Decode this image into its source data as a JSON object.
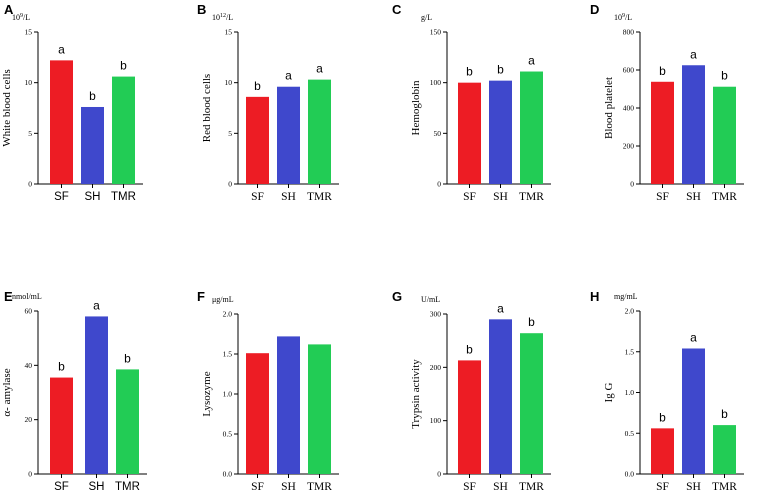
{
  "colors": {
    "SF": "#ed1c24",
    "SH": "#3f48cc",
    "TMR": "#22cc55"
  },
  "chart_data": [
    {
      "type": "bar",
      "panel": "A",
      "unit": {
        "base": "10",
        "exp": "9",
        "rest": "/L"
      },
      "ylabel": "White blood cells",
      "ylim": [
        0,
        15
      ],
      "yticks": [
        "0",
        "5",
        "10",
        "15"
      ],
      "categories": [
        "SF",
        "SH",
        "TMR"
      ],
      "values": [
        12.2,
        7.6,
        10.6
      ],
      "labels": [
        "a",
        "b",
        "b"
      ],
      "tick_style": "sans"
    },
    {
      "type": "bar",
      "panel": "B",
      "unit": {
        "base": "10",
        "exp": "12",
        "rest": "/L"
      },
      "ylabel": "Red blood cells",
      "ylim": [
        0,
        15
      ],
      "yticks": [
        "0",
        "5",
        "10",
        "15"
      ],
      "categories": [
        "SF",
        "SH",
        "TMR"
      ],
      "values": [
        8.6,
        9.6,
        10.3
      ],
      "labels": [
        "b",
        "a",
        "a"
      ],
      "tick_style": "serif"
    },
    {
      "type": "bar",
      "panel": "C",
      "unit": {
        "base": "g/L",
        "exp": "",
        "rest": ""
      },
      "ylabel": "Hemoglobin",
      "ylim": [
        0,
        150
      ],
      "yticks": [
        "0",
        "50",
        "100",
        "150"
      ],
      "categories": [
        "SF",
        "SH",
        "TMR"
      ],
      "values": [
        100,
        102,
        111
      ],
      "labels": [
        "b",
        "b",
        "a"
      ],
      "tick_style": "serif"
    },
    {
      "type": "bar",
      "panel": "D",
      "unit": {
        "base": "10",
        "exp": "9",
        "rest": "/L"
      },
      "ylabel": "Blood platelet",
      "ylim": [
        0,
        800
      ],
      "yticks": [
        "0",
        "200",
        "400",
        "600",
        "800"
      ],
      "categories": [
        "SF",
        "SH",
        "TMR"
      ],
      "values": [
        538,
        625,
        512
      ],
      "labels": [
        "b",
        "a",
        "b"
      ],
      "tick_style": "serif"
    },
    {
      "type": "bar",
      "panel": "E",
      "unit": {
        "base": "nmol/mL",
        "exp": "",
        "rest": ""
      },
      "ylabel": "α- amylase",
      "ylim": [
        0,
        60
      ],
      "yticks": [
        "0",
        "20",
        "40",
        "60"
      ],
      "categories": [
        "SF",
        "SH",
        "TMR"
      ],
      "values": [
        35.5,
        58,
        38.5
      ],
      "labels": [
        "b",
        "a",
        "b"
      ],
      "tick_style": "sans"
    },
    {
      "type": "bar",
      "panel": "F",
      "unit": {
        "base": "μg/mL",
        "exp": "",
        "rest": ""
      },
      "ylabel": "Lysozyme",
      "ylim": [
        0,
        2.0
      ],
      "yticks": [
        "0.0",
        "0.5",
        "1.0",
        "1.5",
        "2.0"
      ],
      "categories": [
        "SF",
        "SH",
        "TMR"
      ],
      "values": [
        1.51,
        1.72,
        1.62
      ],
      "labels": [
        "",
        "",
        ""
      ],
      "tick_style": "serif"
    },
    {
      "type": "bar",
      "panel": "G",
      "unit": {
        "base": "U/mL",
        "exp": "",
        "rest": ""
      },
      "ylabel": "Trypsin activity",
      "ylim": [
        0,
        300
      ],
      "yticks": [
        "0",
        "100",
        "200",
        "300"
      ],
      "categories": [
        "SF",
        "SH",
        "TMR"
      ],
      "values": [
        213,
        290,
        264
      ],
      "labels": [
        "b",
        "a",
        "b"
      ],
      "tick_style": "serif"
    },
    {
      "type": "bar",
      "panel": "H",
      "unit": {
        "base": "mg/mL",
        "exp": "",
        "rest": ""
      },
      "ylabel": "Ig G",
      "ylim": [
        0,
        2.0
      ],
      "yticks": [
        "0.0",
        "0.5",
        "1.0",
        "1.5",
        "2.0"
      ],
      "categories": [
        "SF",
        "SH",
        "TMR"
      ],
      "values": [
        0.56,
        1.54,
        0.6
      ],
      "labels": [
        "b",
        "a",
        "b"
      ],
      "tick_style": "serif"
    }
  ]
}
